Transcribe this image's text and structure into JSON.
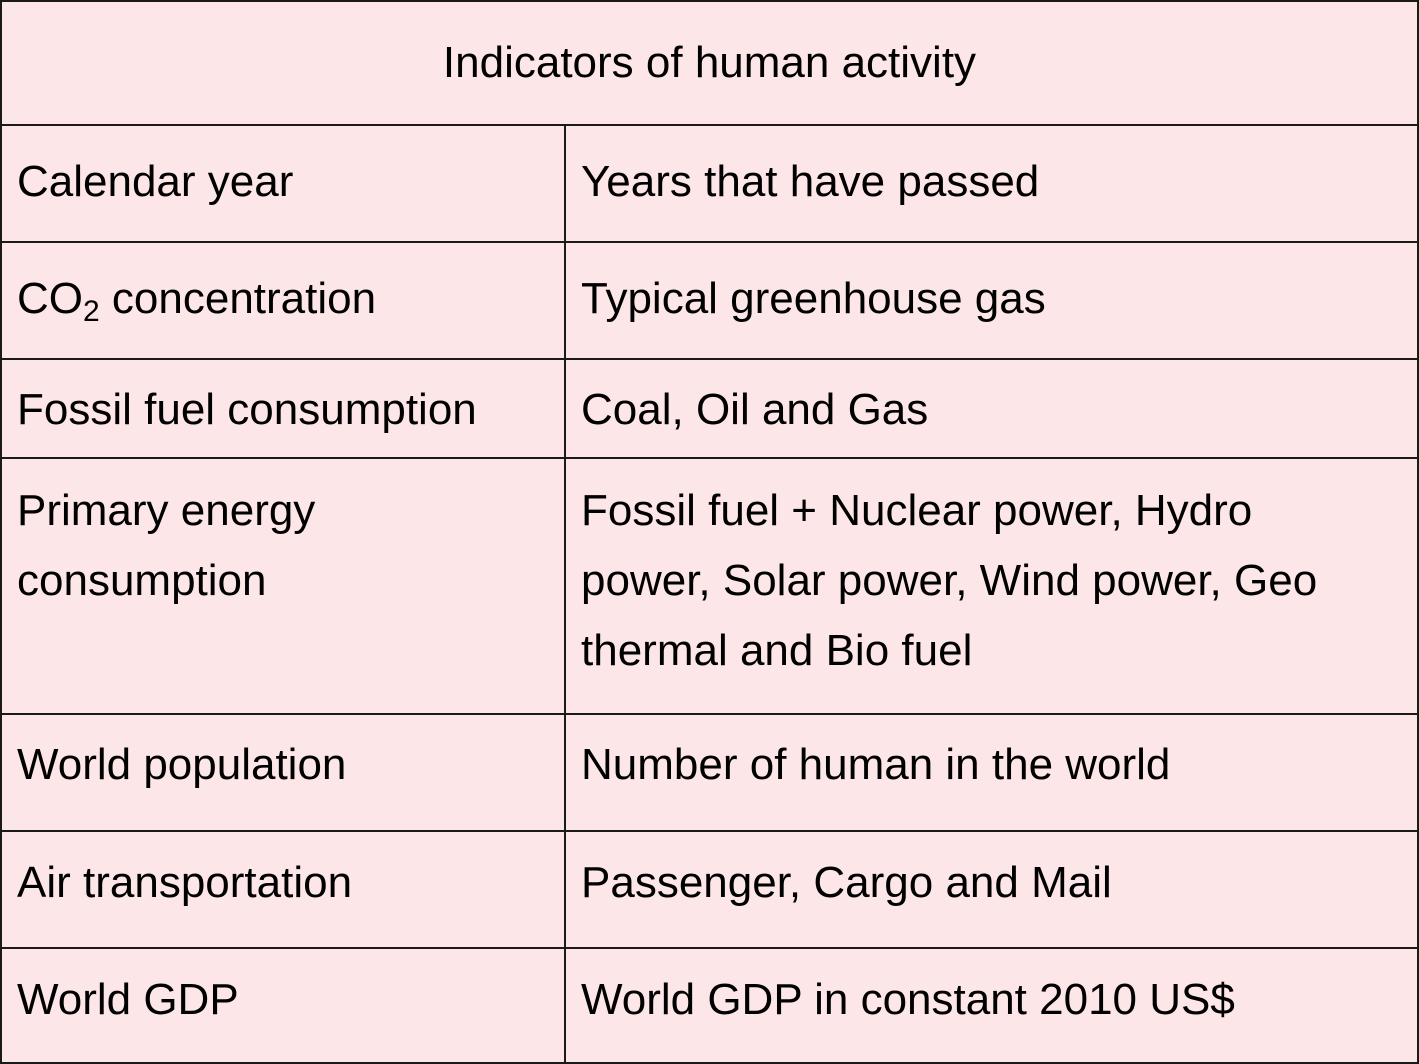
{
  "title": "Indicators of human activity",
  "rows": [
    {
      "indicator": "Calendar year",
      "description": "Years that have passed"
    },
    {
      "indicator_prefix": "CO",
      "indicator_sub": "2",
      "indicator_suffix": " concentration",
      "description": "Typical greenhouse gas"
    },
    {
      "indicator": "Fossil fuel consumption",
      "description": "Coal, Oil and Gas"
    },
    {
      "indicator": "Primary energy consumption",
      "description": "Fossil fuel + Nuclear power, Hydro power, Solar power, Wind power, Geo thermal and Bio fuel"
    },
    {
      "indicator": "World population",
      "description": "Number of human in the world"
    },
    {
      "indicator": "Air transportation",
      "description": "Passenger, Cargo and Mail"
    },
    {
      "indicator": "World GDP",
      "description": "World GDP in constant 2010 US$"
    }
  ],
  "colors": {
    "background": "#fde6e7",
    "border": "#1a1a1a",
    "text": "#000000"
  }
}
